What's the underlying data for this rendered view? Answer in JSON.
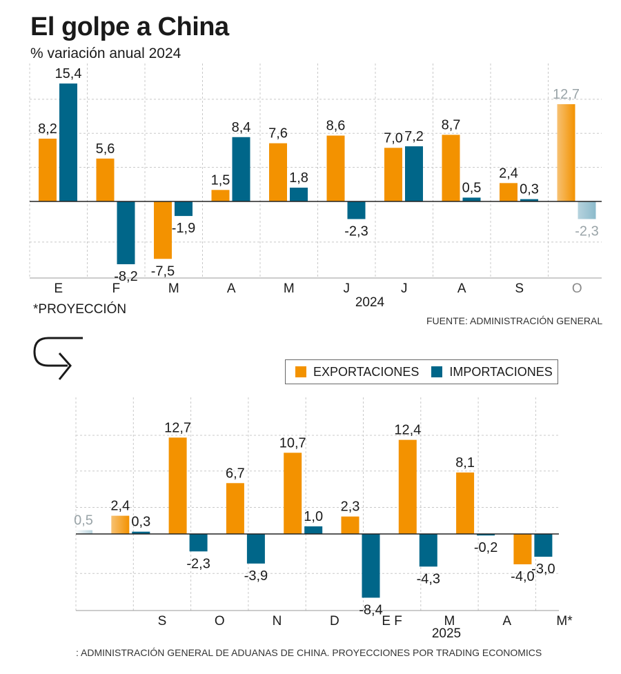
{
  "header": {
    "title": "El golpe a China",
    "subtitle": "% variación anual 2024",
    "projection_note": "*PROYECCIÓN",
    "source_top": "FUENTE: ADMINISTRACIÓN GENERAL",
    "source_bottom": ": ADMINISTRACIÓN GENERAL DE ADUANAS DE CHINA. PROYECCIONES POR TRADING ECONOMICS"
  },
  "legend": {
    "exports_label": "EXPORTACIONES",
    "imports_label": "IMPORTACIONES"
  },
  "colors": {
    "exports": "#f39200",
    "imports": "#006689",
    "grid": "#c8c8c8",
    "axis": "#222222"
  },
  "chart_data": [
    {
      "type": "bar",
      "categories": [
        "E",
        "F",
        "M",
        "A",
        "M",
        "J",
        "J",
        "A",
        "S",
        "O"
      ],
      "year_label": "2024",
      "series": [
        {
          "name": "EXPORTACIONES",
          "values": [
            8.2,
            5.6,
            -7.5,
            1.5,
            7.6,
            8.6,
            7.0,
            8.7,
            2.4,
            12.7
          ],
          "labels": [
            "8,2",
            "5,6",
            "-7,5",
            "1,5",
            "7,6",
            "8,6",
            "7,0",
            "8,7",
            "2,4",
            "12,7"
          ]
        },
        {
          "name": "IMPORTACIONES",
          "values": [
            15.4,
            -8.2,
            -1.9,
            8.4,
            1.8,
            -2.3,
            7.2,
            0.5,
            0.3,
            -2.3
          ],
          "labels": [
            "15,4",
            "-8,2",
            "-1,9",
            "8,4",
            "1,8",
            "-2,3",
            "7,2",
            "0,5",
            "0,3",
            "-2,3"
          ]
        }
      ],
      "ylim": [
        -10,
        17.5
      ],
      "grid": true
    },
    {
      "type": "bar",
      "categories": [
        "",
        "S",
        "O",
        "N",
        "D",
        "E F",
        "M",
        "A",
        "M*"
      ],
      "year_label": "2025",
      "series": [
        {
          "name": "EXPORTACIONES",
          "values": [
            null,
            2.4,
            12.7,
            6.7,
            10.7,
            2.3,
            12.4,
            8.1,
            -4.0
          ],
          "labels": [
            "",
            "2,4",
            "12,7",
            "6,7",
            "10,7",
            "2,3",
            "12,4",
            "8,1",
            "-4,0"
          ]
        },
        {
          "name": "IMPORTACIONES",
          "values": [
            0.5,
            0.3,
            -2.3,
            -3.9,
            1.0,
            -8.4,
            -4.3,
            -0.2,
            -3.0
          ],
          "labels": [
            "0,5",
            "0,3",
            "-2,3",
            "-3,9",
            "1,0",
            "-8,4",
            "-4,3",
            "-0,2",
            "-3,0"
          ]
        }
      ],
      "ylim": [
        -10,
        15
      ],
      "grid": true
    }
  ]
}
